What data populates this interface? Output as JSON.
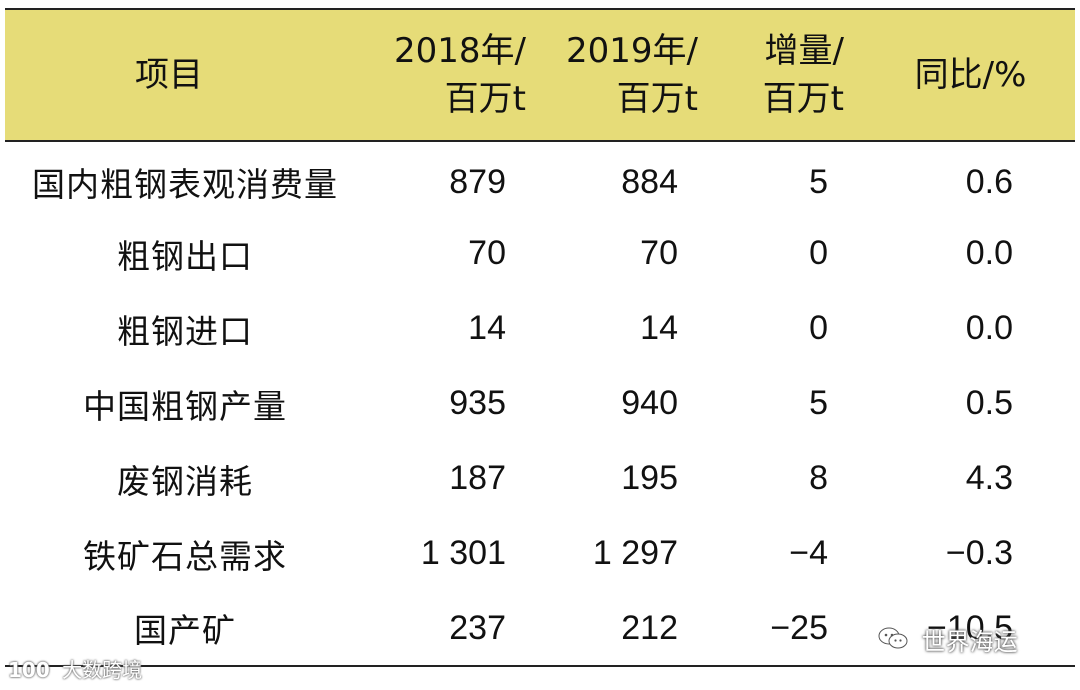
{
  "table": {
    "headers": {
      "item": "项目",
      "y2018_line1": "2018年/",
      "y2018_line2": "百万t",
      "y2019_line1": "2019年/",
      "y2019_line2": "百万t",
      "inc_line1": "增量/",
      "inc_line2": "百万t",
      "yoy": "同比/%"
    },
    "rows": [
      {
        "name": "国内粗钢表观消费量",
        "y2018": "879",
        "y2019": "884",
        "inc": "5",
        "yoy": "0.6"
      },
      {
        "name": "粗钢出口",
        "y2018": "70",
        "y2019": "70",
        "inc": "0",
        "yoy": "0.0"
      },
      {
        "name": "粗钢进口",
        "y2018": "14",
        "y2019": "14",
        "inc": "0",
        "yoy": "0.0"
      },
      {
        "name": "中国粗钢产量",
        "y2018": "935",
        "y2019": "940",
        "inc": "5",
        "yoy": "0.5"
      },
      {
        "name": "废钢消耗",
        "y2018": "187",
        "y2019": "195",
        "inc": "8",
        "yoy": "4.3"
      },
      {
        "name": "铁矿石总需求",
        "y2018": "1 301",
        "y2019": "1 297",
        "inc": "−4",
        "yoy": "−0.3"
      },
      {
        "name": "国产矿",
        "y2018": "237",
        "y2019": "212",
        "inc": "−25",
        "yoy": "−10.5"
      }
    ]
  },
  "watermarks": {
    "left_logo": "100",
    "left_text": "大数跨境",
    "right_icon": "wechat-icon",
    "right_text": "世界海运"
  }
}
